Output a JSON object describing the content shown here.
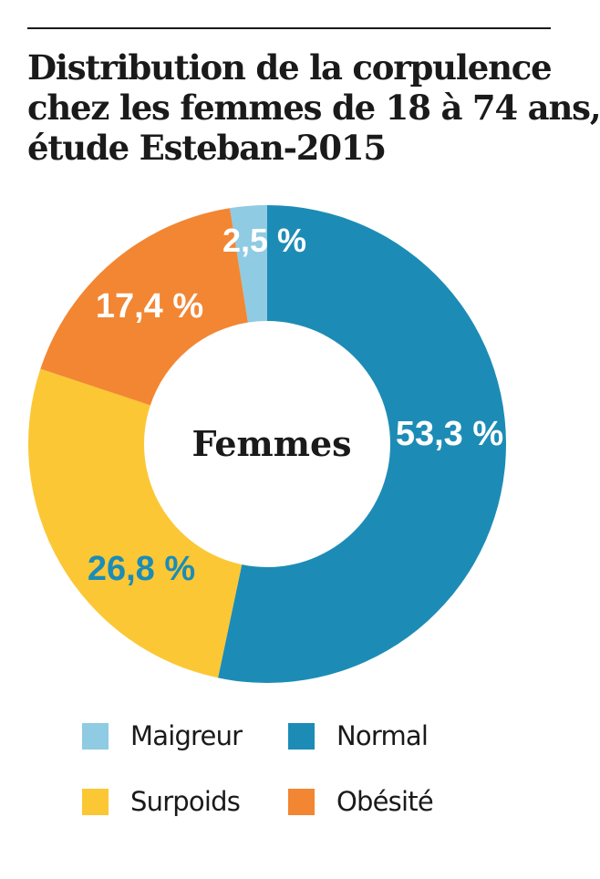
{
  "chart_data": {
    "type": "pie",
    "title": "Distribution de la corpulence chez les femmes de 18 à 74 ans, étude Esteban-2015",
    "title_lines": [
      "Distribution de la corpulence",
      "chez les femmes de 18 à 74 ans,",
      "étude Esteban-2015"
    ],
    "center_label": "Femmes",
    "slices": [
      {
        "name": "Maigreur",
        "value": 2.5,
        "label": "2,5 %",
        "color": "#8fcbe3",
        "label_color": "#ffffff"
      },
      {
        "name": "Normal",
        "value": 53.3,
        "label": "53,3 %",
        "color": "#1c8cb6",
        "label_color": "#ffffff"
      },
      {
        "name": "Surpoids",
        "value": 26.8,
        "label": "26,8 %",
        "color": "#fbc734",
        "label_color": "#1c8cb6"
      },
      {
        "name": "Obésité",
        "value": 17.4,
        "label": "17,4 %",
        "color": "#f28633",
        "label_color": "#ffffff"
      }
    ],
    "legend": [
      {
        "name": "Maigreur",
        "color": "#8fcbe3"
      },
      {
        "name": "Normal",
        "color": "#1c8cb6"
      },
      {
        "name": "Surpoids",
        "color": "#fbc734"
      },
      {
        "name": "Obésité",
        "color": "#f28633"
      }
    ],
    "legend_placement": "bottom"
  }
}
